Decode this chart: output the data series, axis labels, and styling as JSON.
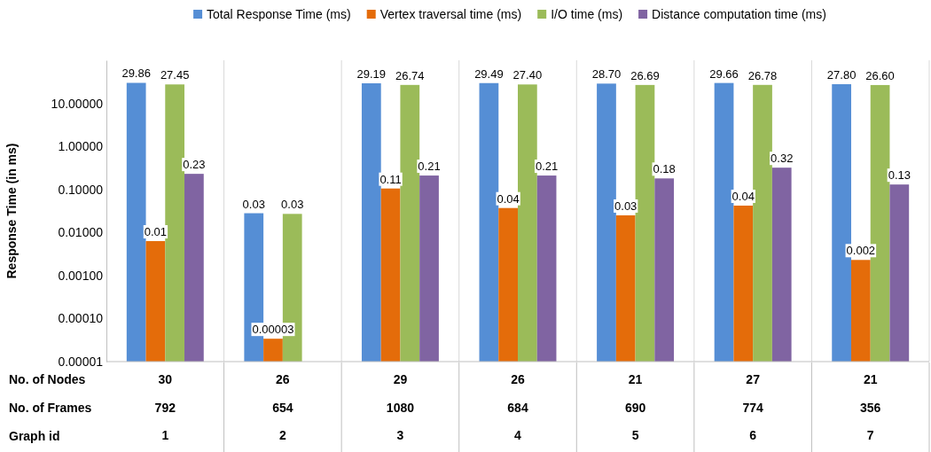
{
  "chart_data": {
    "type": "bar",
    "ylabel": "Response Time (in ms)",
    "xlabel": "Graph id",
    "categories": [
      "1",
      "2",
      "3",
      "4",
      "5",
      "6",
      "7"
    ],
    "series": [
      {
        "name": "Total Response Time (ms)",
        "color": "#558ed5",
        "values": [
          29.86,
          0.028,
          29.19,
          29.49,
          28.7,
          29.66,
          27.8
        ],
        "value_labels": [
          "29.86",
          "0.03",
          "29.19",
          "29.49",
          "28.70",
          "29.66",
          "27.80"
        ]
      },
      {
        "name": "Vertex traversal time (ms)",
        "color": "#e46c0a",
        "values": [
          0.0063,
          3.4e-05,
          0.105,
          0.037,
          0.025,
          0.042,
          0.0023
        ],
        "value_labels": [
          "0.01",
          "0.00003",
          "0.11",
          "0.04",
          "0.03",
          "0.04",
          "0.002"
        ]
      },
      {
        "name": "I/O time (ms)",
        "color": "#9bbb59",
        "values": [
          27.45,
          0.027,
          26.74,
          27.4,
          26.69,
          26.78,
          26.6
        ],
        "value_labels": [
          "27.45",
          "0.03",
          "26.74",
          "27.40",
          "26.69",
          "26.78",
          "26.60"
        ]
      },
      {
        "name": "Distance computation time (ms)",
        "color": "#8064a2",
        "values": [
          0.23,
          null,
          0.21,
          0.21,
          0.18,
          0.32,
          0.13
        ],
        "value_labels": [
          "0.23",
          null,
          "0.21",
          "0.21",
          "0.18",
          "0.32",
          "0.13"
        ]
      }
    ],
    "log": true,
    "ylim": [
      1e-05,
      100
    ],
    "yticks": [
      {
        "value": 1e-05,
        "label": "0.00001"
      },
      {
        "value": 0.0001,
        "label": "0.00010"
      },
      {
        "value": 0.001,
        "label": "0.00100"
      },
      {
        "value": 0.01,
        "label": "0.01000"
      },
      {
        "value": 0.1,
        "label": "0.10000"
      },
      {
        "value": 1,
        "label": "1.00000"
      },
      {
        "value": 10,
        "label": "10.00000"
      }
    ],
    "legend": "top",
    "grid": false,
    "annotations": [
      "No. of Nodes",
      "30",
      "26",
      "29",
      "26",
      "21",
      "27",
      "21",
      "No. of Frames",
      "792",
      "654",
      "1080",
      "684",
      "690",
      "774",
      "356"
    ]
  }
}
